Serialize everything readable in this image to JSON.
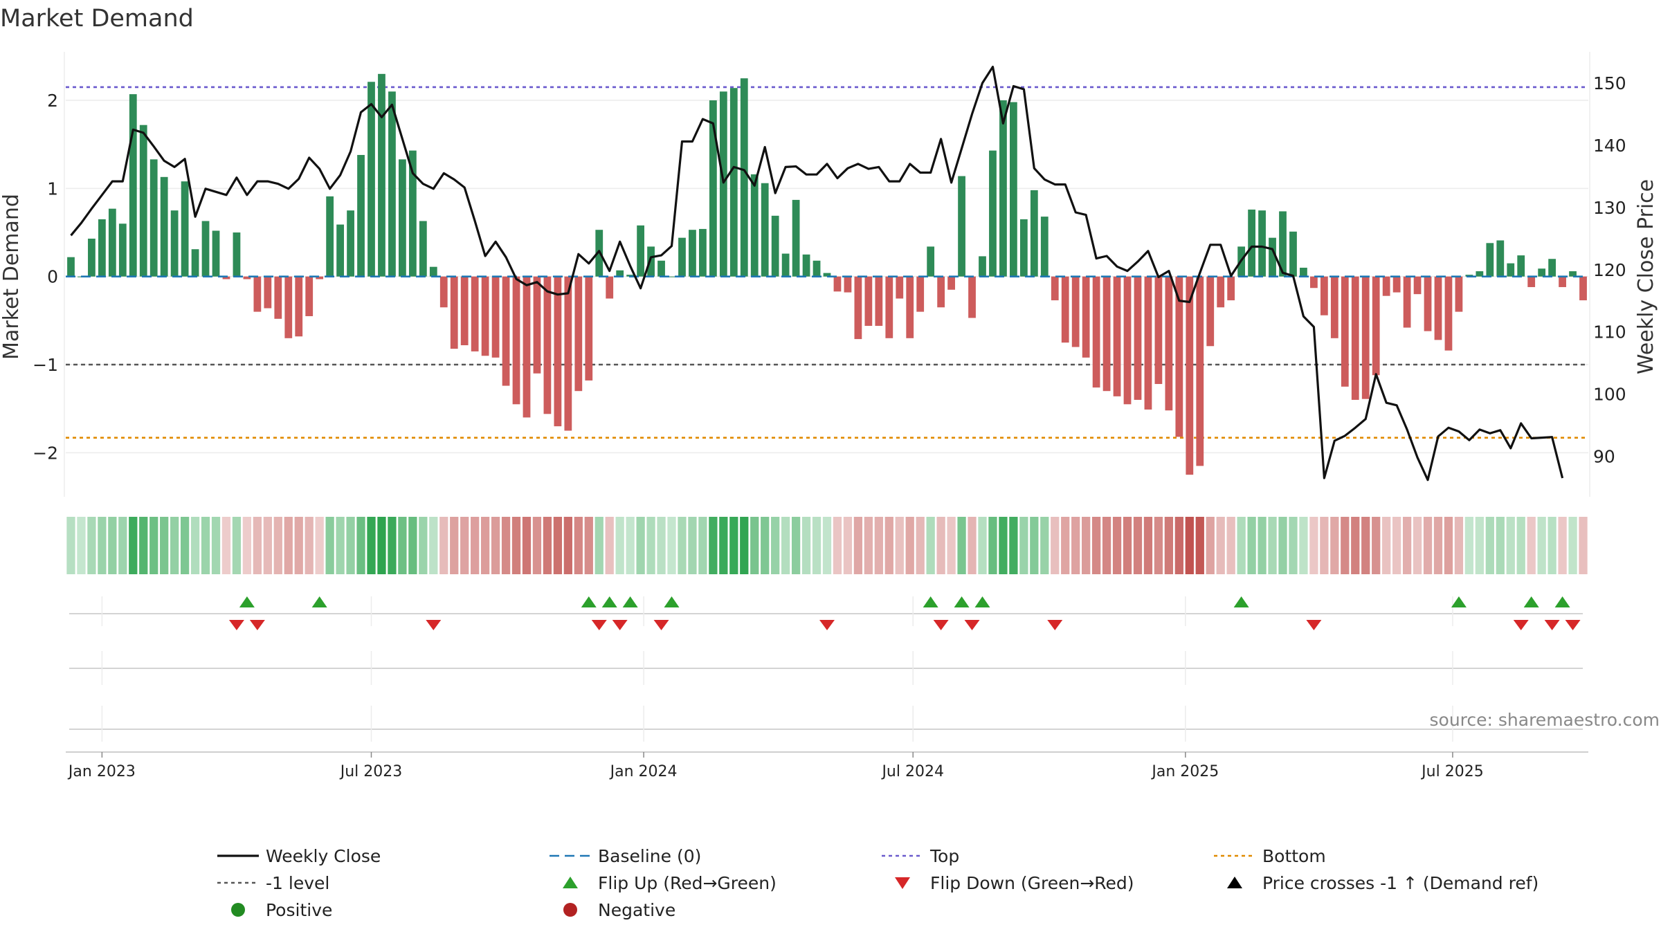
{
  "colors": {
    "positive": "#2e8b57",
    "negative": "#cd5c5c",
    "price": "#111111",
    "baseline": "#1f77b4",
    "top": "#6a5acd",
    "bottom": "#e08a00",
    "minus1": "#555555",
    "flip_up": "#2ca02c",
    "flip_down": "#d62728",
    "pos_dot": "#228b22",
    "neg_dot": "#b22222"
  },
  "chart_data": {
    "type": "bar+line",
    "title": "Market Demand",
    "ylabel": "Market Demand",
    "y2label": "Weekly Close Price",
    "source": "source: sharemaestro.com",
    "ylim": [
      -2.5,
      2.55
    ],
    "y2lim": [
      83.5,
      155
    ],
    "yticks": [
      2,
      1,
      0,
      -1,
      -2
    ],
    "ytick_labels": [
      "2",
      "1",
      "0",
      "−1",
      "−2"
    ],
    "y2ticks": [
      150,
      140,
      130,
      120,
      110,
      100,
      90
    ],
    "y2tick_labels": [
      "150",
      "140",
      "130",
      "120",
      "110",
      "100",
      "90"
    ],
    "reference_lines": {
      "top": 2.15,
      "minus1": -1.0,
      "bottom": -1.83,
      "baseline": 0
    },
    "x_start_week": -3,
    "x_ticks": [
      {
        "label": "Jan 2023",
        "week": 0
      },
      {
        "label": "Jul 2023",
        "week": 26
      },
      {
        "label": "Jan 2024",
        "week": 52.3
      },
      {
        "label": "Jul 2024",
        "week": 78.3
      },
      {
        "label": "Jan 2025",
        "week": 104.6
      },
      {
        "label": "Jul 2025",
        "week": 130.4
      }
    ],
    "demand": [
      0.22,
      0.0,
      0.43,
      0.65,
      0.77,
      0.6,
      2.07,
      1.72,
      1.33,
      1.13,
      0.75,
      1.08,
      0.31,
      0.63,
      0.52,
      -0.03,
      0.5,
      -0.03,
      -0.4,
      -0.36,
      -0.48,
      -0.7,
      -0.68,
      -0.45,
      -0.03,
      0.91,
      0.59,
      0.75,
      1.38,
      2.21,
      2.3,
      2.1,
      1.33,
      1.43,
      0.63,
      0.11,
      -0.35,
      -0.82,
      -0.78,
      -0.85,
      -0.9,
      -0.92,
      -1.24,
      -1.45,
      -1.6,
      -1.1,
      -1.56,
      -1.7,
      -1.75,
      -1.3,
      -1.18,
      0.53,
      -0.25,
      0.07,
      0.02,
      0.58,
      0.34,
      0.18,
      0.0,
      0.44,
      0.53,
      0.54,
      2.0,
      2.1,
      2.14,
      2.25,
      1.16,
      1.06,
      0.69,
      0.26,
      0.87,
      0.25,
      0.18,
      0.04,
      -0.17,
      -0.18,
      -0.71,
      -0.56,
      -0.56,
      -0.7,
      -0.25,
      -0.7,
      -0.4,
      0.34,
      -0.35,
      -0.15,
      1.14,
      -0.47,
      0.23,
      1.43,
      2.0,
      1.98,
      0.65,
      0.98,
      0.68,
      -0.27,
      -0.75,
      -0.8,
      -0.92,
      -1.26,
      -1.3,
      -1.36,
      -1.45,
      -1.4,
      -1.51,
      -1.22,
      -1.52,
      -1.82,
      -2.25,
      -2.15,
      -0.79,
      -0.35,
      -0.27,
      0.34,
      0.76,
      0.75,
      0.44,
      0.74,
      0.51,
      0.1,
      -0.13,
      -0.44,
      -0.7,
      -1.25,
      -1.4,
      -1.39,
      -1.12,
      -0.22,
      -0.18,
      -0.58,
      -0.2,
      -0.62,
      -0.72,
      -0.84,
      -0.4,
      0.02,
      0.06,
      0.38,
      0.41,
      0.15,
      0.24,
      -0.12,
      0.09,
      0.2,
      -0.12,
      0.06,
      -0.27
    ],
    "price": [
      125.5,
      127.5,
      129.8,
      132.0,
      134.2,
      134.2,
      142.5,
      142.0,
      139.8,
      137.5,
      136.5,
      137.8,
      128.5,
      133.0,
      132.5,
      132.0,
      134.8,
      132.0,
      134.2,
      134.2,
      133.8,
      133.0,
      134.6,
      138.0,
      136.2,
      133.0,
      135.2,
      139.0,
      145.3,
      146.6,
      144.5,
      146.5,
      141.0,
      135.5,
      133.8,
      133.0,
      135.5,
      134.5,
      133.2,
      127.8,
      122.2,
      124.5,
      122.0,
      118.5,
      117.5,
      118.0,
      116.5,
      116.0,
      116.2,
      122.5,
      121.0,
      123.0,
      119.8,
      124.5,
      120.6,
      117.0,
      122.0,
      122.3,
      123.8,
      140.6,
      140.6,
      144.2,
      143.5,
      134.0,
      136.5,
      136.0,
      133.5,
      139.7,
      132.3,
      136.5,
      136.6,
      135.3,
      135.3,
      137.0,
      134.7,
      136.3,
      137.0,
      136.2,
      136.5,
      134.2,
      134.2,
      137.0,
      135.6,
      135.6,
      141.0,
      134.0,
      139.5,
      145.0,
      150.0,
      152.6,
      143.5,
      149.5,
      149.0,
      136.3,
      134.5,
      133.7,
      133.7,
      129.2,
      128.8,
      121.8,
      122.2,
      120.5,
      119.8,
      121.3,
      123.0,
      118.8,
      119.8,
      115.0,
      114.8,
      119.5,
      124.0,
      124.0,
      119.0,
      121.5,
      123.7,
      123.7,
      123.3,
      119.5,
      119.0,
      112.5,
      110.8,
      86.5,
      92.5,
      93.3,
      94.6,
      96.0,
      103.2,
      98.6,
      98.2,
      94.3,
      89.8,
      86.2,
      93.2,
      94.6,
      94.0,
      92.6,
      94.3,
      93.7,
      94.2,
      91.3,
      95.3,
      92.9,
      93.0,
      93.1,
      86.5
    ],
    "flips_up_weeks": [
      14,
      21,
      47,
      49,
      51,
      55,
      80,
      83,
      85,
      110,
      131,
      138,
      141
    ],
    "flips_down_weeks": [
      13,
      15,
      32,
      48,
      50,
      54,
      70,
      81,
      84,
      92,
      117,
      137,
      140,
      142
    ],
    "legend": [
      {
        "label": "Weekly Close",
        "kind": "line",
        "color": "#111111"
      },
      {
        "label": "Baseline (0)",
        "kind": "dash",
        "color": "#1f77b4"
      },
      {
        "label": "Top",
        "kind": "dot",
        "color": "#6a5acd"
      },
      {
        "label": "Bottom",
        "kind": "dot",
        "color": "#e08a00"
      },
      {
        "label": "-1 level",
        "kind": "dot",
        "color": "#555555"
      },
      {
        "label": "Flip Up (Red→Green)",
        "kind": "tri-up",
        "color": "#2ca02c"
      },
      {
        "label": "Flip Down (Green→Red)",
        "kind": "tri-down",
        "color": "#d62728"
      },
      {
        "label": "Price crosses -1 ↑ (Demand ref)",
        "kind": "tri-up",
        "color": "#000000"
      },
      {
        "label": "Positive",
        "kind": "circle",
        "color": "#228b22"
      },
      {
        "label": "Negative",
        "kind": "circle",
        "color": "#b22222"
      }
    ]
  }
}
